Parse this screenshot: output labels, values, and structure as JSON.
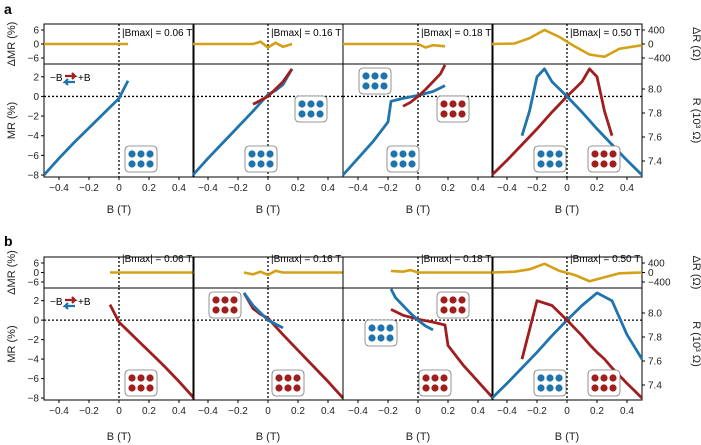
{
  "panel_labels": [
    "a",
    "b"
  ],
  "colors": {
    "red": "#a01e1e",
    "blue": "#1f74ad",
    "gold": "#d4a017"
  },
  "top_axis": {
    "ylabel": "ΔMR (%)",
    "yticks": [
      "6",
      "0",
      "−6"
    ],
    "right_label": "ΔR (Ω)",
    "right_ticks": [
      "400",
      "0",
      "−400"
    ]
  },
  "main_axis": {
    "ylabel": "MR (%)",
    "yticks": [
      "2",
      "0",
      "−2",
      "−4",
      "−6",
      "−8"
    ],
    "right_label": "R (10³ Ω)",
    "right_ticks": [
      "8.0",
      "7.8",
      "7.6",
      "7.4"
    ],
    "xlabel": "B (T)",
    "xticks": [
      "−0.4",
      "−0.2",
      "0",
      "0.2",
      "0.4"
    ]
  },
  "bmax_labels": [
    "|Bmax| = 0.06 T",
    "|Bmax| = 0.16 T",
    "|Bmax| = 0.18 T",
    "|Bmax| = 0.50 T"
  ],
  "legend": {
    "neg": "−B",
    "pos": "+B"
  },
  "chart_data": [
    {
      "type": "line",
      "panel": "a",
      "xlabel": "B (T)",
      "ylabel": "MR (%)",
      "xlim": [
        -0.5,
        0.5
      ],
      "ylim": [
        -8.2,
        3.3
      ],
      "subplots": [
        {
          "bmax_T": 0.06,
          "series": [
            {
              "color": "blue",
              "x": [
                -0.5,
                -0.4,
                -0.3,
                -0.2,
                -0.1,
                0.0,
                0.06
              ],
              "y": [
                -8.0,
                -6.3,
                -4.7,
                -3.2,
                -1.7,
                -0.2,
                1.6
              ]
            }
          ],
          "delta_mr": {
            "x": [
              -0.5,
              0.06
            ],
            "y": [
              0,
              0
            ]
          }
        },
        {
          "bmax_T": 0.16,
          "series": [
            {
              "color": "blue",
              "x": [
                -0.5,
                -0.4,
                -0.3,
                -0.2,
                -0.1,
                0.0,
                0.05,
                0.1,
                0.16
              ],
              "y": [
                -8.0,
                -6.3,
                -4.7,
                -3.1,
                -1.5,
                0.2,
                0.6,
                1.2,
                2.8
              ]
            },
            {
              "color": "red",
              "x": [
                -0.1,
                0.0,
                0.1,
                0.16
              ],
              "y": [
                -0.8,
                0.0,
                1.5,
                2.8
              ]
            }
          ],
          "delta_mr": {
            "x": [
              -0.5,
              -0.1,
              -0.05,
              0.0,
              0.05,
              0.1,
              0.16
            ],
            "y": [
              0,
              0,
              1.0,
              -1.5,
              0.5,
              -1.2,
              0
            ]
          }
        },
        {
          "bmax_T": 0.18,
          "series": [
            {
              "color": "blue",
              "x": [
                -0.5,
                -0.4,
                -0.3,
                -0.2,
                -0.18,
                -0.1,
                0.0,
                0.1,
                0.18
              ],
              "y": [
                -8.0,
                -6.3,
                -4.6,
                -2.6,
                -0.5,
                -0.2,
                0.1,
                0.5,
                1.1
              ]
            },
            {
              "color": "red",
              "x": [
                -0.1,
                -0.05,
                0.0,
                0.05,
                0.1,
                0.15,
                0.18
              ],
              "y": [
                -1.0,
                -0.6,
                0.0,
                0.7,
                1.5,
                2.3,
                3.2
              ]
            }
          ],
          "delta_mr": {
            "x": [
              -0.5,
              0.0,
              0.05,
              0.1,
              0.18
            ],
            "y": [
              0,
              0,
              -1.5,
              -0.5,
              -1.0
            ]
          }
        },
        {
          "bmax_T": 0.5,
          "series": [
            {
              "color": "red",
              "x": [
                -0.5,
                -0.4,
                -0.3,
                -0.2,
                -0.1,
                0.0,
                0.1,
                0.15,
                0.2,
                0.25,
                0.3
              ],
              "y": [
                -8.0,
                -6.5,
                -4.9,
                -3.3,
                -1.6,
                0.0,
                1.5,
                2.8,
                2.0,
                -1.5,
                -4.0
              ]
            },
            {
              "color": "blue",
              "x": [
                -0.3,
                -0.25,
                -0.2,
                -0.15,
                -0.1,
                0.0,
                0.1,
                0.2,
                0.3,
                0.4,
                0.5
              ],
              "y": [
                -4.0,
                -1.5,
                2.0,
                2.8,
                1.5,
                0.0,
                -1.6,
                -3.3,
                -4.9,
                -6.5,
                -8.0
              ]
            }
          ],
          "delta_mr": {
            "x": [
              -0.5,
              -0.35,
              -0.25,
              -0.15,
              -0.05,
              0.05,
              0.15,
              0.25,
              0.35,
              0.5
            ],
            "y": [
              0,
              0.2,
              2.5,
              6.0,
              3.0,
              -1.0,
              -4.5,
              -5.5,
              -2.0,
              -0.5
            ]
          }
        }
      ]
    },
    {
      "type": "line",
      "panel": "b",
      "xlabel": "B (T)",
      "ylabel": "MR (%)",
      "xlim": [
        -0.5,
        0.5
      ],
      "ylim": [
        -8.2,
        3.3
      ],
      "subplots": [
        {
          "bmax_T": 0.06,
          "series": [
            {
              "color": "red",
              "x": [
                -0.06,
                0.0,
                0.1,
                0.2,
                0.3,
                0.4,
                0.5
              ],
              "y": [
                1.6,
                -0.2,
                -1.7,
                -3.2,
                -4.7,
                -6.3,
                -8.0
              ]
            }
          ],
          "delta_mr": {
            "x": [
              -0.06,
              0.5
            ],
            "y": [
              0,
              0
            ]
          }
        },
        {
          "bmax_T": 0.16,
          "series": [
            {
              "color": "red",
              "x": [
                -0.16,
                -0.1,
                -0.05,
                0.0,
                0.1,
                0.2,
                0.3,
                0.4,
                0.5
              ],
              "y": [
                2.8,
                1.2,
                0.6,
                0.2,
                -1.5,
                -3.1,
                -4.7,
                -6.3,
                -8.0
              ]
            },
            {
              "color": "blue",
              "x": [
                -0.16,
                -0.1,
                0.0,
                0.1
              ],
              "y": [
                2.8,
                1.5,
                0.0,
                -0.8
              ]
            }
          ],
          "delta_mr": {
            "x": [
              -0.16,
              -0.1,
              -0.05,
              0.0,
              0.05,
              0.1,
              0.5
            ],
            "y": [
              0,
              -1.2,
              0.5,
              -1.5,
              1.0,
              0,
              0
            ]
          }
        },
        {
          "bmax_T": 0.18,
          "series": [
            {
              "color": "red",
              "x": [
                -0.18,
                -0.1,
                0.0,
                0.1,
                0.18,
                0.2,
                0.3,
                0.4,
                0.5
              ],
              "y": [
                1.1,
                0.5,
                0.1,
                -0.2,
                -0.5,
                -2.6,
                -4.6,
                -6.3,
                -8.0
              ]
            },
            {
              "color": "blue",
              "x": [
                -0.18,
                -0.15,
                -0.1,
                -0.05,
                0.0,
                0.05,
                0.1
              ],
              "y": [
                3.2,
                2.3,
                1.5,
                0.7,
                0.0,
                -0.6,
                -1.0
              ]
            }
          ],
          "delta_mr": {
            "x": [
              -0.18,
              -0.1,
              -0.05,
              0.0,
              0.5
            ],
            "y": [
              1.0,
              0.5,
              1.5,
              0,
              0
            ]
          }
        },
        {
          "bmax_T": 0.5,
          "series": [
            {
              "color": "blue",
              "x": [
                -0.5,
                -0.4,
                -0.3,
                -0.2,
                -0.1,
                0.0,
                0.1,
                0.2,
                0.3,
                0.4,
                0.5
              ],
              "y": [
                -8.0,
                -6.5,
                -4.9,
                -3.3,
                -1.6,
                0.0,
                1.5,
                2.8,
                2.0,
                -1.5,
                -4.0
              ]
            },
            {
              "color": "red",
              "x": [
                -0.3,
                -0.2,
                -0.1,
                0.0,
                0.1,
                0.15,
                0.2,
                0.25,
                0.3,
                0.4,
                0.5
              ],
              "y": [
                -4.0,
                2.0,
                1.5,
                0.0,
                -1.6,
                -2.5,
                -3.3,
                -4.0,
                -4.9,
                -6.5,
                -8.0
              ]
            }
          ],
          "delta_mr": {
            "x": [
              -0.5,
              -0.35,
              -0.25,
              -0.15,
              -0.05,
              0.05,
              0.15,
              0.25,
              0.35,
              0.5
            ],
            "y": [
              0,
              0.5,
              2.0,
              5.5,
              1.0,
              -1.5,
              -5.5,
              -3.0,
              -0.5,
              0
            ]
          }
        }
      ]
    }
  ]
}
